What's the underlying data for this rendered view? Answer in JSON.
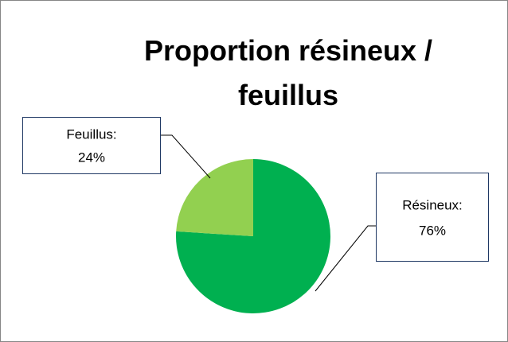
{
  "chart_data": {
    "type": "pie",
    "title": "Proportion résineux / feuillus",
    "categories": [
      "Résineux:",
      "Feuillus:"
    ],
    "values": [
      76,
      24
    ],
    "value_labels": [
      "76%",
      "24%"
    ],
    "colors": [
      "#00b050",
      "#92d050"
    ]
  }
}
